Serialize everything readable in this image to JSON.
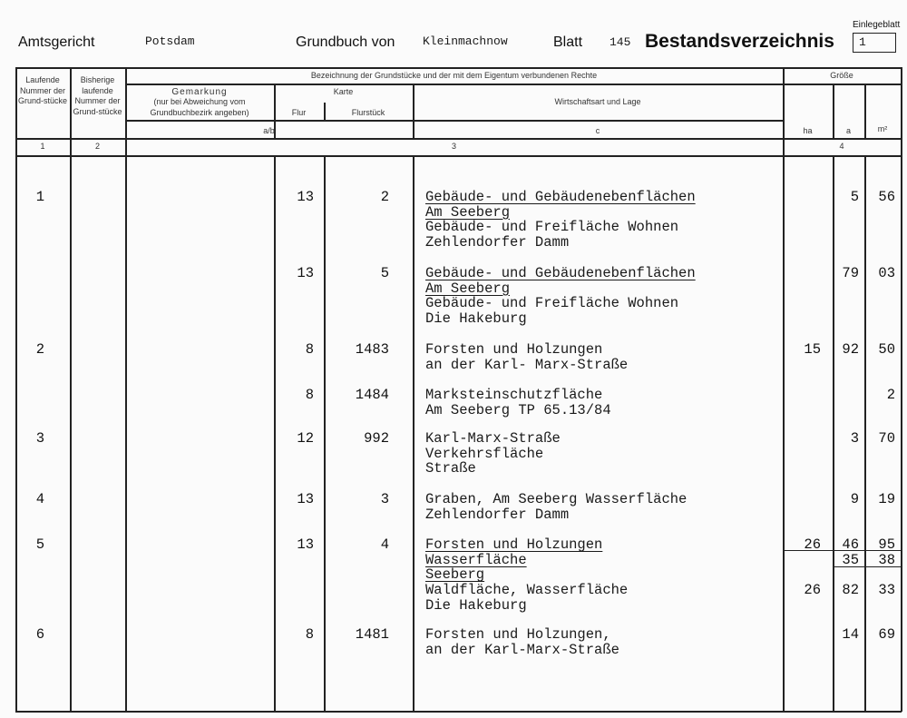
{
  "header": {
    "court_label": "Amtsgericht",
    "court": "Potsdam",
    "register_label": "Grundbuch von",
    "register": "Kleinmachnow",
    "sheet_label": "Blatt",
    "sheet": "145",
    "title": "Bestandsverzeichnis",
    "insert_label": "Einlegeblatt",
    "insert": "1"
  },
  "columns": {
    "lfd": "Laufende Nummer der Grund-stücke",
    "prev": "Bisherige laufende Nummer der Grund-stücke",
    "bez": "Bezeichnung der Grundstücke und der mit dem Eigentum verbundenen Rechte",
    "gem": "Gemarkung",
    "gem_note": "(nur bei Abweichung vom Grundbuchbezirk angeben)",
    "karte": "Karte",
    "flur": "Flur",
    "flurstueck": "Flurstück",
    "wirt": "Wirtschaftsart und Lage",
    "ab": "a/b",
    "c": "c",
    "groesse": "Größe",
    "ha": "ha",
    "a": "a",
    "m2": "m²",
    "n1": "1",
    "n2": "2",
    "n3": "3",
    "n4": "4"
  },
  "entries": [
    {
      "lfd": "1",
      "flur": "13",
      "flurstueck": "2",
      "lines": [
        "Gebäude- und Gebäudenebenflächen",
        "Am Seeberg",
        "Gebäude- und Freifläche Wohnen",
        "Zehlendorfer Damm"
      ],
      "sizes": [
        [
          "",
          "5",
          "56"
        ]
      ]
    },
    {
      "lfd": "",
      "flur": "13",
      "flurstueck": "5",
      "lines": [
        "Gebäude- und Gebäudenebenflächen",
        "Am Seeberg",
        "Gebäude- und Freifläche Wohnen",
        "Die Hakeburg"
      ],
      "sizes": [
        [
          "",
          "79",
          "03"
        ]
      ]
    },
    {
      "lfd": "2",
      "flur": "8",
      "flurstueck": "1483",
      "lines": [
        "Forsten und Holzungen",
        "an der Karl- Marx-Straße"
      ],
      "sizes": [
        [
          "15",
          "92",
          "50"
        ]
      ]
    },
    {
      "lfd": "",
      "flur": "8",
      "flurstueck": "1484",
      "lines": [
        "Marksteinschutzfläche",
        "Am Seeberg  TP 65.13/84"
      ],
      "sizes": [
        [
          "",
          "",
          "2"
        ]
      ]
    },
    {
      "lfd": "3",
      "flur": "12",
      "flurstueck": "992",
      "lines": [
        "Karl-Marx-Straße",
        "Verkehrsfläche",
        "Straße"
      ],
      "sizes": [
        [
          "",
          "3",
          "70"
        ]
      ]
    },
    {
      "lfd": "4",
      "flur": "13",
      "flurstueck": "3",
      "lines": [
        "Graben, Am Seeberg  Wasserfläche",
        "Zehlendorfer Damm"
      ],
      "sizes": [
        [
          "",
          "9",
          "19"
        ]
      ]
    },
    {
      "lfd": "5",
      "flur": "13",
      "flurstueck": "4",
      "lines": [
        "Forsten und Holzungen",
        "Wasserfläche",
        "Seeberg",
        "Waldfläche, Wasserfläche",
        "Die Hakeburg"
      ],
      "sizes": [
        [
          "26",
          "46",
          "95"
        ],
        [
          "",
          "35",
          "38"
        ],
        [
          "",
          "",
          ""
        ],
        [
          "26",
          "82",
          "33"
        ]
      ]
    },
    {
      "lfd": "6",
      "flur": "8",
      "flurstueck": "1481",
      "lines": [
        "Forsten und Holzungen,",
        "an der Karl-Marx-Straße"
      ],
      "sizes": [
        [
          "",
          "14",
          "69"
        ]
      ]
    }
  ]
}
